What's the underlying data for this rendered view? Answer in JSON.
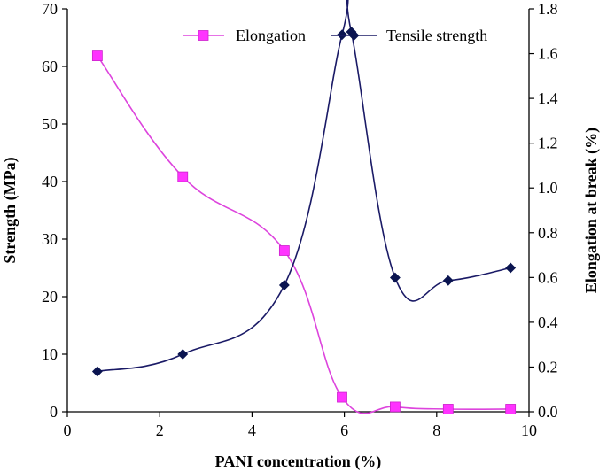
{
  "chart_data": {
    "type": "line",
    "xlabel": "PANI concentration (%)",
    "ylabel_left": "Strength (MPa)",
    "ylabel_right": "Elongation at break (%)",
    "xlim": [
      0,
      10
    ],
    "ylim_left": [
      0,
      70
    ],
    "ylim_right": [
      0,
      1.8
    ],
    "x_ticks": [
      "0",
      "2",
      "4",
      "6",
      "8",
      "10"
    ],
    "y_left_ticks": [
      "0",
      "10",
      "20",
      "30",
      "40",
      "50",
      "60",
      "70"
    ],
    "y_right_ticks": [
      "0.0",
      "0.2",
      "0.4",
      "0.6",
      "0.8",
      "1.0",
      "1.2",
      "1.4",
      "1.6",
      "1.8"
    ],
    "grid": false,
    "legend_position": "top",
    "series": [
      {
        "name": "Elongation",
        "axis": "right",
        "color": "#ff33ff",
        "line_color": "#dd44dd",
        "marker": "square",
        "x": [
          0.65,
          2.5,
          4.7,
          5.95,
          7.1,
          8.25,
          9.6
        ],
        "values": [
          1.59,
          1.05,
          0.72,
          0.065,
          0.022,
          0.012,
          0.012
        ]
      },
      {
        "name": "Tensile strength",
        "axis": "left",
        "color": "#0a1450",
        "line_color": "#1a1a66",
        "marker": "diamond",
        "x": [
          0.65,
          2.5,
          4.7,
          5.95,
          6.15,
          7.1,
          8.25,
          9.6
        ],
        "values": [
          7,
          10,
          22,
          65.5,
          66,
          23.3,
          22.8,
          25
        ]
      }
    ]
  }
}
